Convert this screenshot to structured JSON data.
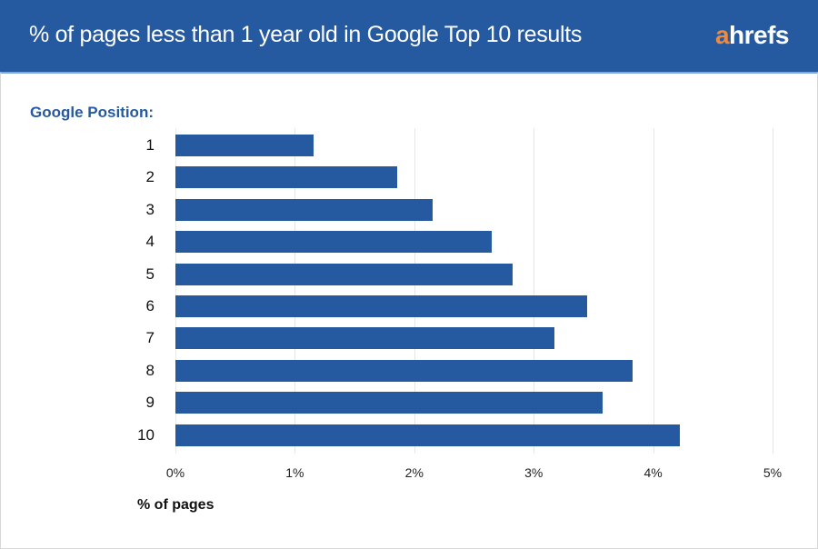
{
  "header": {
    "title": "% of pages less than 1 year old in Google Top 10 results",
    "logo_a": "a",
    "logo_rest": "hrefs"
  },
  "colors": {
    "header_bg": "#265aa0",
    "bar": "#265aa0",
    "logo_accent": "#f08a3a"
  },
  "chart_data": {
    "type": "bar",
    "orientation": "horizontal",
    "title": "% of pages less than 1 year old in Google Top 10 results",
    "ylabel": "Google Position:",
    "xlabel": "% of pages",
    "categories": [
      "1",
      "2",
      "3",
      "4",
      "5",
      "6",
      "7",
      "8",
      "9",
      "10"
    ],
    "values": [
      1.16,
      1.86,
      2.15,
      2.65,
      2.82,
      3.45,
      3.17,
      3.83,
      3.58,
      4.22
    ],
    "unit": "%",
    "xlim": [
      0,
      5
    ],
    "x_ticks": [
      "0%",
      "1%",
      "2%",
      "3%",
      "4%",
      "5%"
    ],
    "grid": "vertical",
    "legend": null
  }
}
